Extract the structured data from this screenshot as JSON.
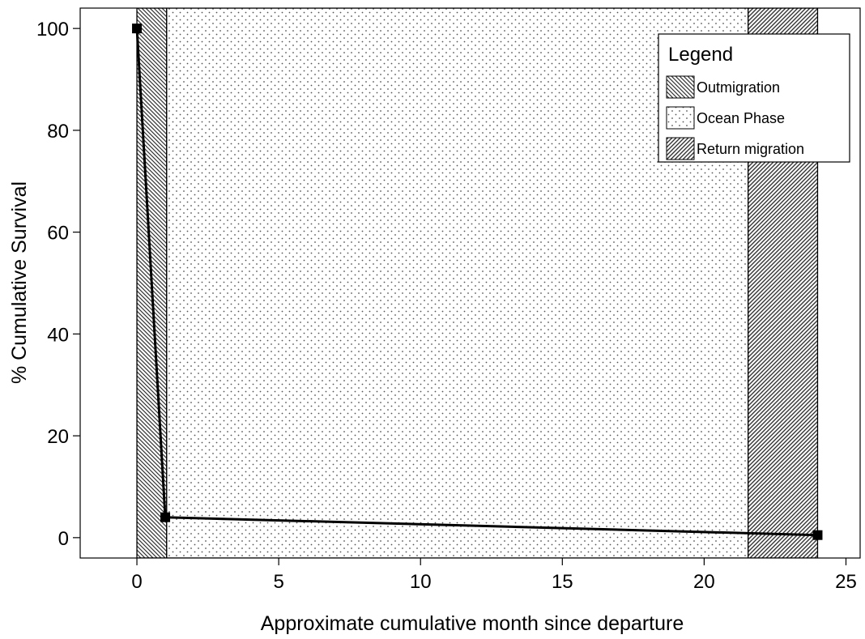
{
  "chart_data": {
    "type": "line",
    "xlabel": "Approximate cumulative month since departure",
    "ylabel": "% Cumulative Survival",
    "xlim": [
      -2,
      25.5
    ],
    "ylim": [
      -4,
      104
    ],
    "x_ticks": [
      0,
      5,
      10,
      15,
      20,
      25
    ],
    "y_ticks": [
      0,
      20,
      40,
      60,
      80,
      100
    ],
    "grid": false,
    "series": [
      {
        "points": [
          {
            "x": 0,
            "y": 100
          },
          {
            "x": 1,
            "y": 4
          },
          {
            "x": 24,
            "y": 0.5
          }
        ],
        "color": "#000000",
        "marker": "square"
      }
    ],
    "phases": [
      {
        "name": "Outmigration",
        "x_start": 0,
        "x_end": 1.05,
        "pattern": "back-hatch"
      },
      {
        "name": "Ocean Phase",
        "x_start": 1.05,
        "x_end": 21.55,
        "pattern": "dots"
      },
      {
        "name": "Return migration",
        "x_start": 21.55,
        "x_end": 24,
        "pattern": "forward-hatch"
      }
    ],
    "legend": {
      "title": "Legend",
      "position": "top-right",
      "entries": [
        "Outmigration",
        "Ocean Phase",
        "Return migration"
      ]
    }
  }
}
